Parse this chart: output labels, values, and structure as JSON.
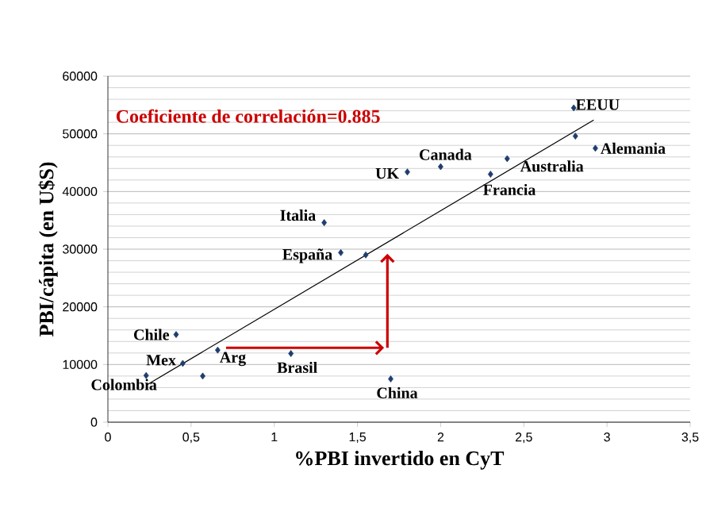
{
  "chart_data": {
    "type": "scatter",
    "xlabel": "%PBI invertido en CyT",
    "ylabel": "PBI/cápita (en U$S)",
    "xlim": [
      0,
      3.5
    ],
    "ylim": [
      0,
      60000
    ],
    "xticks": [
      0,
      {
        "value": 0.5,
        "label": "0,5"
      },
      1,
      {
        "value": 1.5,
        "label": "1,5"
      },
      2,
      {
        "value": 2.5,
        "label": "2,5"
      },
      3,
      {
        "value": 3.5,
        "label": "3,5"
      }
    ],
    "yticks": [
      0,
      10000,
      20000,
      30000,
      40000,
      50000,
      60000
    ],
    "grid": "y",
    "marker": "diamond",
    "series": [
      {
        "color": "#1f3e6e",
        "x": [
          2.8,
          2.81,
          2.93,
          2.0,
          1.8,
          2.4,
          2.3,
          1.3,
          1.4,
          1.55,
          0.41,
          0.45,
          0.23,
          0.57,
          0.66,
          1.1,
          1.7
        ],
        "values": [
          54500,
          49600,
          47500,
          44300,
          43400,
          45700,
          43000,
          34600,
          29400,
          29000,
          15200,
          10200,
          8100,
          8000,
          12500,
          11900,
          7500
        ]
      },
      {
        "type": "line",
        "marker": "none",
        "color": "#000000",
        "x": [
          0.23,
          2.92
        ],
        "values": [
          6400,
          52400
        ]
      }
    ],
    "annotations": [
      "Coeficiente de correlación=0.885",
      {
        "text": "EEUU",
        "x": 2.8,
        "y": 54500
      },
      {
        "text": "Alemania",
        "x": 2.93,
        "y": 47500
      },
      {
        "text": "Canada",
        "x": 2.0,
        "y": 44300
      },
      {
        "text": "UK",
        "x": 1.8,
        "y": 43400
      },
      {
        "text": "Australia",
        "x": 2.4,
        "y": 45700
      },
      {
        "text": "Francia",
        "x": 2.3,
        "y": 43000
      },
      {
        "text": "Italia",
        "x": 1.3,
        "y": 34600
      },
      {
        "text": "España",
        "x": 1.4,
        "y": 29400
      },
      {
        "text": "Chile",
        "x": 0.41,
        "y": 15200
      },
      {
        "text": "Mex",
        "x": 0.45,
        "y": 10200
      },
      {
        "text": "Colombia",
        "x": 0.23,
        "y": 8100
      },
      {
        "text": "Arg",
        "x": 0.66,
        "y": 12500
      },
      {
        "text": "Brasil",
        "x": 1.1,
        "y": 11900
      },
      {
        "text": "China",
        "x": 1.7,
        "y": 7500
      }
    ]
  }
}
